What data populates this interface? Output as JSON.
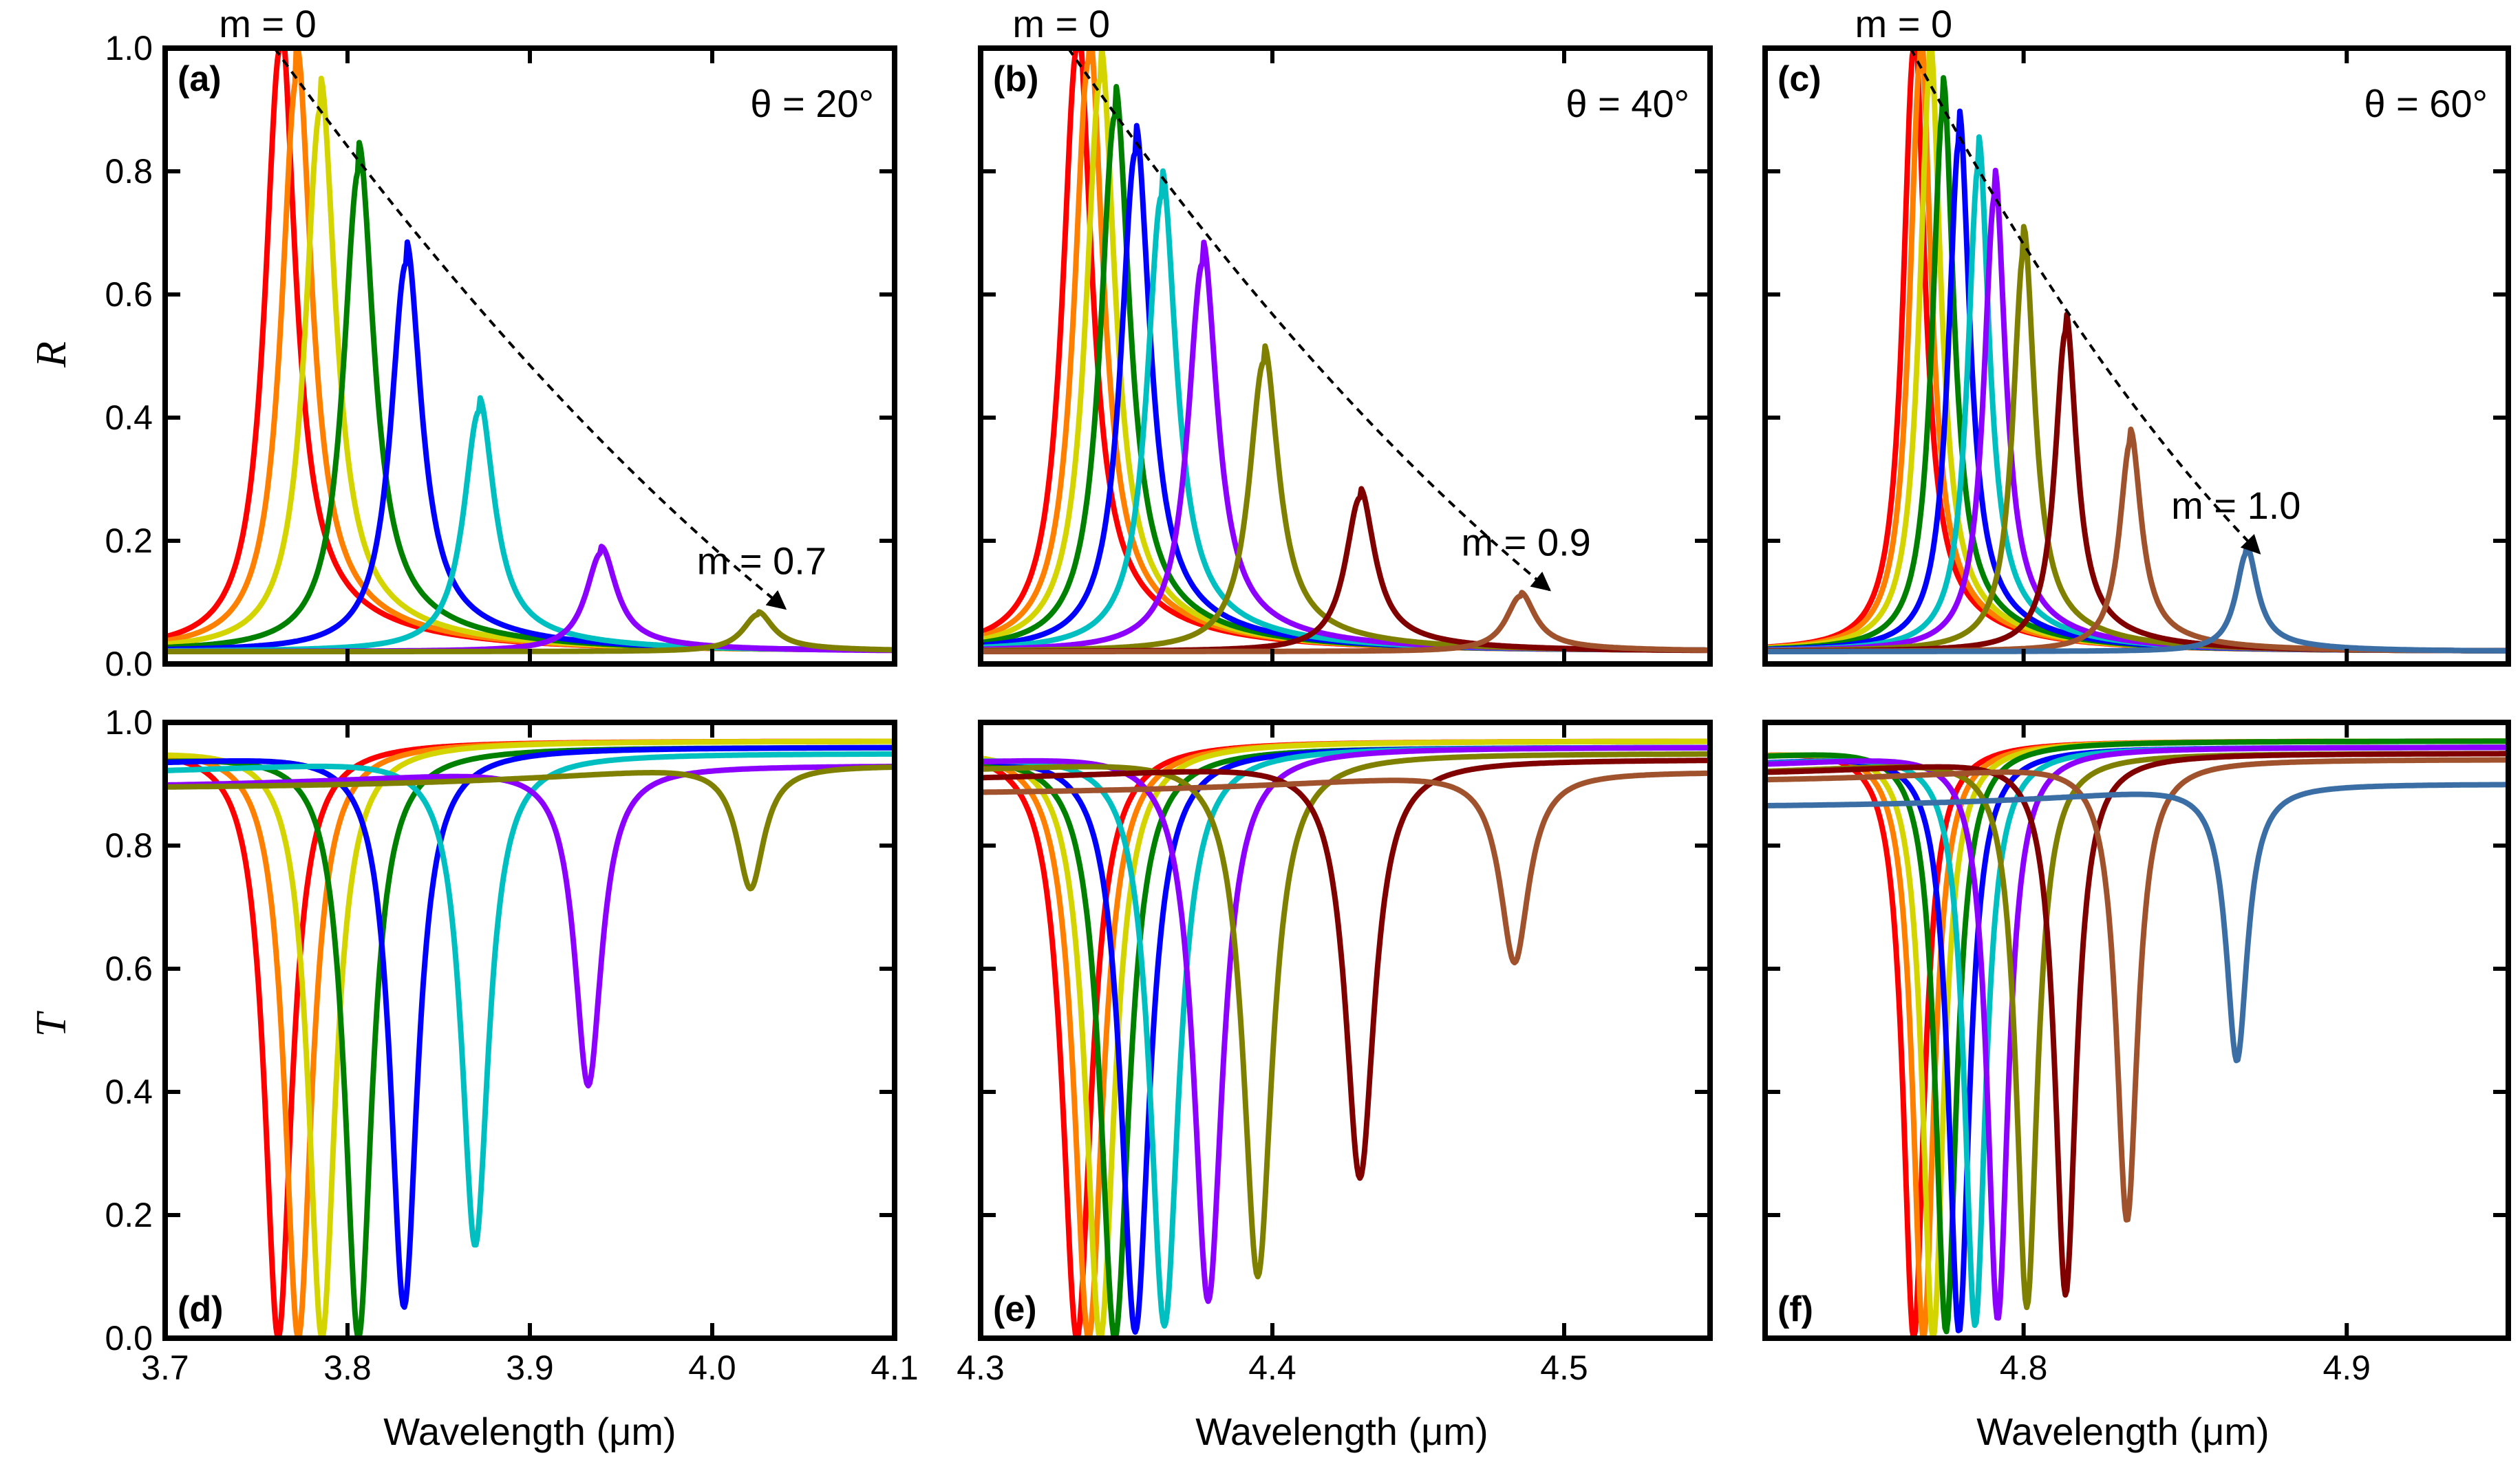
{
  "figure": {
    "axis_titles": {
      "R_ylabel": "R",
      "T_ylabel": "T",
      "xlabel": "Wavelength (μm)"
    }
  },
  "colors": {
    "palette": [
      "#ff0000",
      "#ff7f00",
      "#d4d400",
      "#008000",
      "#0000ff",
      "#00bfc0",
      "#8b00ff",
      "#808000",
      "#800000",
      "#a0522d",
      "#3a6ea5"
    ]
  },
  "chart_data": [
    {
      "id": "a",
      "type": "line",
      "panel_label": "(a)",
      "quantity": "R",
      "xlim": [
        3.7,
        4.1
      ],
      "ylim": [
        0.0,
        1.0
      ],
      "x_ticks": [
        "3.7",
        "3.8",
        "3.9",
        "4.0",
        "4.1"
      ],
      "x_tick_values": [
        3.7,
        3.8,
        3.9,
        4.0,
        4.1
      ],
      "y_ticks": [
        "0.0",
        "0.2",
        "0.4",
        "0.6",
        "0.8",
        "1.0"
      ],
      "y_tick_values": [
        0,
        0.2,
        0.4,
        0.6,
        0.8,
        1.0
      ],
      "angle_label": "θ = 20°",
      "m_start_label": "m = 0",
      "m_end_label": "m = 0.7",
      "envelope": {
        "from": [
          3.76,
          1.0
        ],
        "to": [
          4.04,
          0.09
        ]
      },
      "resonances": [
        {
          "x0": 3.763,
          "peak": 1.0,
          "base": 0.02,
          "width": 0.01
        },
        {
          "x0": 3.772,
          "peak": 0.95,
          "base": 0.02,
          "width": 0.01
        },
        {
          "x0": 3.785,
          "peak": 0.9,
          "base": 0.02,
          "width": 0.01
        },
        {
          "x0": 3.806,
          "peak": 0.8,
          "base": 0.02,
          "width": 0.01
        },
        {
          "x0": 3.832,
          "peak": 0.65,
          "base": 0.02,
          "width": 0.01
        },
        {
          "x0": 3.872,
          "peak": 0.41,
          "base": 0.02,
          "width": 0.01
        },
        {
          "x0": 3.939,
          "peak": 0.18,
          "base": 0.02,
          "width": 0.01
        },
        {
          "x0": 4.025,
          "peak": 0.08,
          "base": 0.02,
          "width": 0.01
        }
      ]
    },
    {
      "id": "b",
      "type": "line",
      "panel_label": "(b)",
      "quantity": "R",
      "xlim": [
        4.3,
        4.55
      ],
      "ylim": [
        0.0,
        1.0
      ],
      "x_ticks": [
        "4.3",
        "4.4",
        "4.5"
      ],
      "x_tick_values": [
        4.3,
        4.4,
        4.5
      ],
      "y_ticks": [],
      "y_tick_values": [
        0,
        0.2,
        0.4,
        0.6,
        0.8,
        1.0
      ],
      "angle_label": "θ = 40°",
      "m_start_label": "m = 0",
      "m_end_label": "m = 0.9",
      "envelope": {
        "from": [
          4.33,
          1.0
        ],
        "to": [
          4.495,
          0.12
        ]
      },
      "resonances": [
        {
          "x0": 4.333,
          "peak": 1.0,
          "base": 0.02,
          "width": 0.006
        },
        {
          "x0": 4.337,
          "peak": 0.98,
          "base": 0.02,
          "width": 0.006
        },
        {
          "x0": 4.341,
          "peak": 0.95,
          "base": 0.02,
          "width": 0.006
        },
        {
          "x0": 4.346,
          "peak": 0.89,
          "base": 0.02,
          "width": 0.006
        },
        {
          "x0": 4.353,
          "peak": 0.83,
          "base": 0.02,
          "width": 0.006
        },
        {
          "x0": 4.362,
          "peak": 0.76,
          "base": 0.02,
          "width": 0.006
        },
        {
          "x0": 4.376,
          "peak": 0.65,
          "base": 0.02,
          "width": 0.006
        },
        {
          "x0": 4.397,
          "peak": 0.49,
          "base": 0.02,
          "width": 0.006
        },
        {
          "x0": 4.43,
          "peak": 0.27,
          "base": 0.02,
          "width": 0.006
        },
        {
          "x0": 4.485,
          "peak": 0.11,
          "base": 0.02,
          "width": 0.006
        }
      ]
    },
    {
      "id": "c",
      "type": "line",
      "panel_label": "(c)",
      "quantity": "R",
      "xlim": [
        4.72,
        4.95
      ],
      "ylim": [
        0.0,
        1.0
      ],
      "x_ticks": [
        "4.8",
        "4.9"
      ],
      "x_tick_values": [
        4.8,
        4.9
      ],
      "y_ticks": [],
      "y_tick_values": [
        0,
        0.2,
        0.4,
        0.6,
        0.8,
        1.0
      ],
      "angle_label": "θ = 60°",
      "m_start_label": "m = 0",
      "m_end_label": "m = 1.0",
      "envelope": {
        "from": [
          4.765,
          1.0
        ],
        "to": [
          4.873,
          0.18
        ]
      },
      "resonances": [
        {
          "x0": 4.766,
          "peak": 1.0,
          "base": 0.02,
          "width": 0.004
        },
        {
          "x0": 4.768,
          "peak": 0.98,
          "base": 0.02,
          "width": 0.004
        },
        {
          "x0": 4.771,
          "peak": 0.96,
          "base": 0.02,
          "width": 0.004
        },
        {
          "x0": 4.775,
          "peak": 0.9,
          "base": 0.02,
          "width": 0.004
        },
        {
          "x0": 4.78,
          "peak": 0.85,
          "base": 0.02,
          "width": 0.004
        },
        {
          "x0": 4.786,
          "peak": 0.81,
          "base": 0.02,
          "width": 0.004
        },
        {
          "x0": 4.791,
          "peak": 0.76,
          "base": 0.02,
          "width": 0.004
        },
        {
          "x0": 4.8,
          "peak": 0.67,
          "base": 0.02,
          "width": 0.004
        },
        {
          "x0": 4.813,
          "peak": 0.54,
          "base": 0.02,
          "width": 0.004
        },
        {
          "x0": 4.833,
          "peak": 0.36,
          "base": 0.02,
          "width": 0.004
        },
        {
          "x0": 4.869,
          "peak": 0.18,
          "base": 0.02,
          "width": 0.004
        }
      ]
    },
    {
      "id": "d",
      "type": "line",
      "panel_label": "(d)",
      "quantity": "T",
      "xlim": [
        3.7,
        4.1
      ],
      "ylim": [
        0.0,
        1.0
      ],
      "x_ticks": [
        "3.7",
        "3.8",
        "3.9",
        "4.0",
        "4.1"
      ],
      "x_tick_values": [
        3.7,
        3.8,
        3.9,
        4.0,
        4.1
      ],
      "y_ticks": [
        "0.0",
        "0.2",
        "0.4",
        "0.6",
        "0.8",
        "1.0"
      ],
      "y_tick_values": [
        0,
        0.2,
        0.4,
        0.6,
        0.8,
        1.0
      ],
      "resonances": [
        {
          "x0": 3.762,
          "min": 0.0,
          "top": 0.97,
          "width": 0.009
        },
        {
          "x0": 3.773,
          "min": 0.0,
          "top": 0.97,
          "width": 0.009
        },
        {
          "x0": 3.786,
          "min": 0.0,
          "top": 0.97,
          "width": 0.009
        },
        {
          "x0": 3.806,
          "min": 0.0,
          "top": 0.96,
          "width": 0.009
        },
        {
          "x0": 3.831,
          "min": 0.05,
          "top": 0.96,
          "width": 0.009
        },
        {
          "x0": 3.87,
          "min": 0.15,
          "top": 0.95,
          "width": 0.009
        },
        {
          "x0": 3.932,
          "min": 0.41,
          "top": 0.93,
          "width": 0.009
        },
        {
          "x0": 4.021,
          "min": 0.73,
          "top": 0.93,
          "width": 0.009
        }
      ]
    },
    {
      "id": "e",
      "type": "line",
      "panel_label": "(e)",
      "quantity": "T",
      "xlim": [
        4.3,
        4.55
      ],
      "ylim": [
        0.0,
        1.0
      ],
      "x_ticks": [
        "4.3",
        "4.4",
        "4.5"
      ],
      "x_tick_values": [
        4.3,
        4.4,
        4.5
      ],
      "y_ticks": [],
      "y_tick_values": [
        0,
        0.2,
        0.4,
        0.6,
        0.8,
        1.0
      ],
      "resonances": [
        {
          "x0": 4.333,
          "min": 0.0,
          "top": 0.97,
          "width": 0.006
        },
        {
          "x0": 4.337,
          "min": 0.0,
          "top": 0.97,
          "width": 0.006
        },
        {
          "x0": 4.341,
          "min": 0.0,
          "top": 0.97,
          "width": 0.006
        },
        {
          "x0": 4.346,
          "min": 0.0,
          "top": 0.96,
          "width": 0.006
        },
        {
          "x0": 4.353,
          "min": 0.01,
          "top": 0.96,
          "width": 0.006
        },
        {
          "x0": 4.363,
          "min": 0.02,
          "top": 0.96,
          "width": 0.006
        },
        {
          "x0": 4.378,
          "min": 0.06,
          "top": 0.96,
          "width": 0.006
        },
        {
          "x0": 4.395,
          "min": 0.1,
          "top": 0.95,
          "width": 0.006
        },
        {
          "x0": 4.43,
          "min": 0.26,
          "top": 0.94,
          "width": 0.006
        },
        {
          "x0": 4.483,
          "min": 0.61,
          "top": 0.92,
          "width": 0.006
        }
      ]
    },
    {
      "id": "f",
      "type": "line",
      "panel_label": "(f)",
      "quantity": "T",
      "xlim": [
        4.72,
        4.95
      ],
      "ylim": [
        0.0,
        1.0
      ],
      "x_ticks": [
        "4.8",
        "4.9"
      ],
      "x_tick_values": [
        4.8,
        4.9
      ],
      "y_ticks": [],
      "y_tick_values": [
        0,
        0.2,
        0.4,
        0.6,
        0.8,
        1.0
      ],
      "resonances": [
        {
          "x0": 4.766,
          "min": 0.0,
          "top": 0.97,
          "width": 0.004
        },
        {
          "x0": 4.769,
          "min": 0.0,
          "top": 0.97,
          "width": 0.004
        },
        {
          "x0": 4.772,
          "min": 0.0,
          "top": 0.97,
          "width": 0.004
        },
        {
          "x0": 4.776,
          "min": 0.01,
          "top": 0.97,
          "width": 0.004
        },
        {
          "x0": 4.78,
          "min": 0.01,
          "top": 0.96,
          "width": 0.004
        },
        {
          "x0": 4.785,
          "min": 0.02,
          "top": 0.96,
          "width": 0.004
        },
        {
          "x0": 4.792,
          "min": 0.03,
          "top": 0.96,
          "width": 0.004
        },
        {
          "x0": 4.801,
          "min": 0.05,
          "top": 0.95,
          "width": 0.004
        },
        {
          "x0": 4.813,
          "min": 0.07,
          "top": 0.95,
          "width": 0.004
        },
        {
          "x0": 4.832,
          "min": 0.19,
          "top": 0.94,
          "width": 0.004
        },
        {
          "x0": 4.866,
          "min": 0.45,
          "top": 0.9,
          "width": 0.004
        }
      ]
    }
  ]
}
